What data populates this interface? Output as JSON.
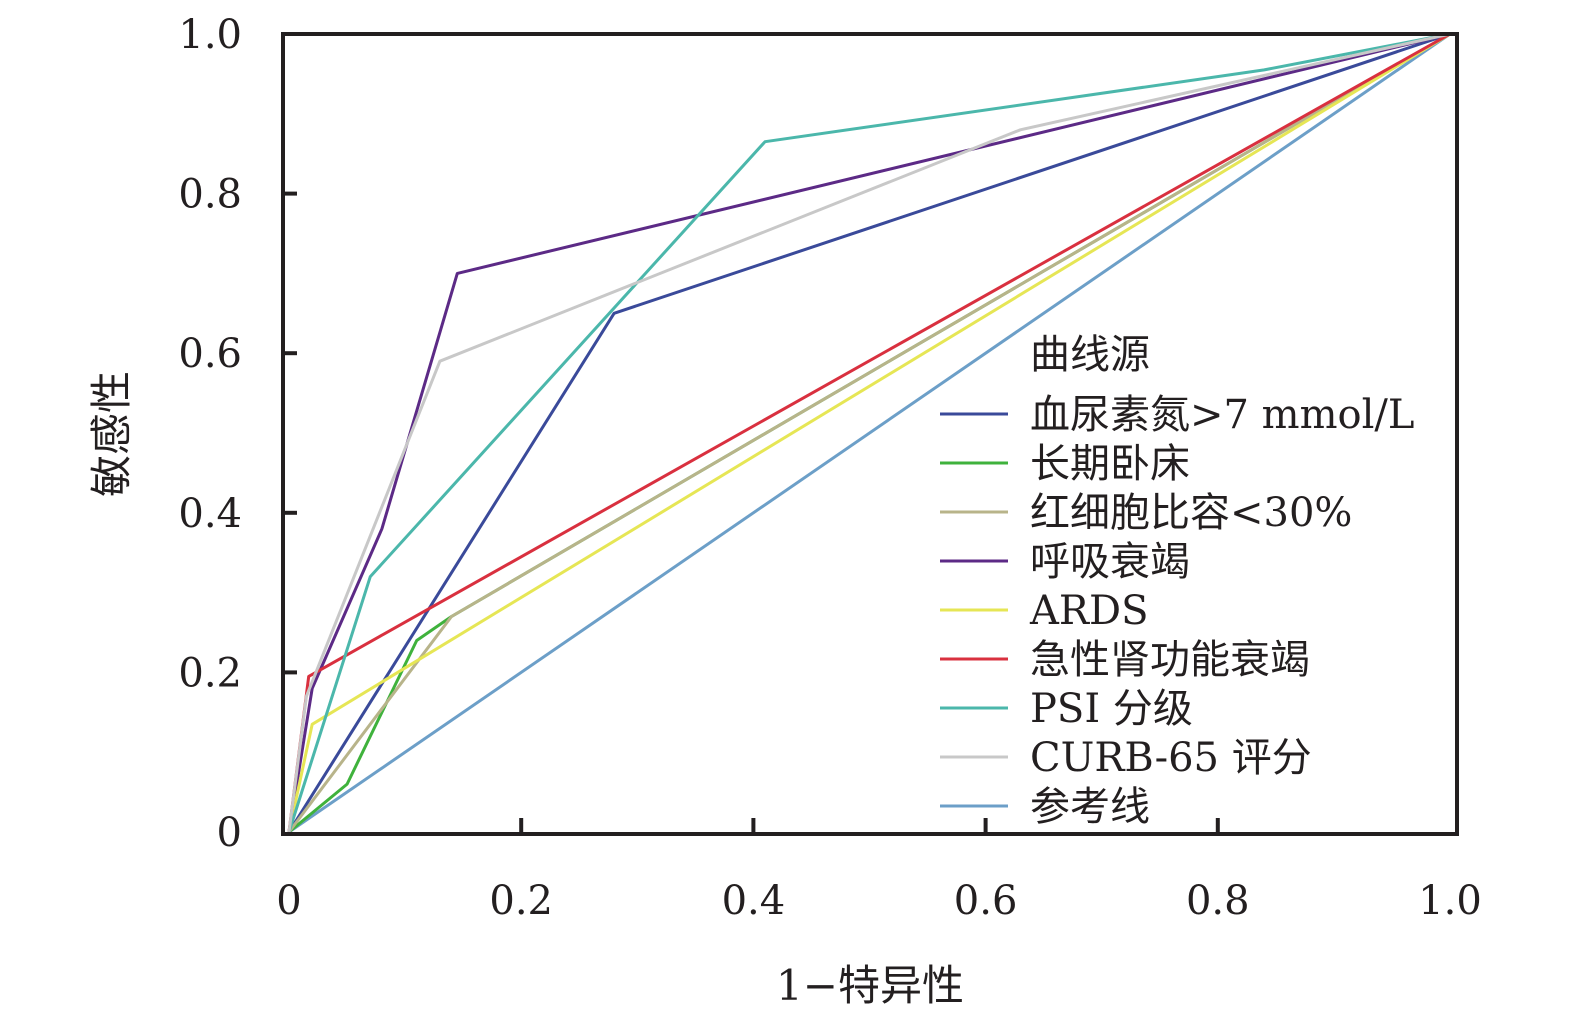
{
  "chart_data": {
    "type": "line",
    "xlabel": "1−特异性",
    "ylabel": "敏感性",
    "xlim": [
      0,
      1
    ],
    "ylim": [
      0,
      1
    ],
    "x_ticks": [
      0,
      0.2,
      0.4,
      0.6,
      0.8,
      1.0
    ],
    "y_ticks": [
      0,
      0.2,
      0.4,
      0.6,
      0.8,
      1.0
    ],
    "x_tick_labels": [
      "0",
      "0.2",
      "0.4",
      "0.6",
      "0.8",
      "1.0"
    ],
    "y_tick_labels": [
      "0",
      "0.2",
      "0.4",
      "0.6",
      "0.8",
      "1.0"
    ],
    "grid": false,
    "legend": {
      "title": "曲线源",
      "placement": "bottom-right"
    },
    "series": [
      {
        "name": "血尿素氮>7 mmol/L",
        "color": "#3a4a9a",
        "points": [
          [
            0,
            0
          ],
          [
            0.28,
            0.65
          ],
          [
            1,
            1
          ]
        ]
      },
      {
        "name": "长期卧床",
        "color": "#3fb23c",
        "points": [
          [
            0,
            0
          ],
          [
            0.05,
            0.06
          ],
          [
            0.11,
            0.24
          ],
          [
            0.14,
            0.27
          ],
          [
            1,
            1
          ]
        ]
      },
      {
        "name": "红细胞比容<30%",
        "color": "#b8b48a",
        "points": [
          [
            0,
            0
          ],
          [
            0.14,
            0.27
          ],
          [
            1,
            1
          ]
        ]
      },
      {
        "name": "呼吸衰竭",
        "color": "#5c2a86",
        "points": [
          [
            0,
            0
          ],
          [
            0.02,
            0.18
          ],
          [
            0.08,
            0.38
          ],
          [
            0.145,
            0.7
          ],
          [
            1,
            1
          ]
        ]
      },
      {
        "name": "ARDS",
        "color": "#e6e655",
        "points": [
          [
            0,
            0
          ],
          [
            0.02,
            0.135
          ],
          [
            1,
            1
          ]
        ]
      },
      {
        "name": "急性肾功能衰竭",
        "color": "#d9303f",
        "points": [
          [
            0,
            0
          ],
          [
            0.017,
            0.195
          ],
          [
            1,
            1
          ]
        ]
      },
      {
        "name": "PSI 分级",
        "color": "#4bb7ab",
        "points": [
          [
            0,
            0
          ],
          [
            0.07,
            0.32
          ],
          [
            0.41,
            0.865
          ],
          [
            0.84,
            0.955
          ],
          [
            1,
            1
          ]
        ]
      },
      {
        "name": "CURB-65 评分",
        "color": "#c8c8c8",
        "points": [
          [
            0,
            0
          ],
          [
            0.015,
            0.17
          ],
          [
            0.13,
            0.59
          ],
          [
            0.63,
            0.88
          ],
          [
            1,
            1
          ]
        ]
      },
      {
        "name": "参考线",
        "color": "#6c9fc8",
        "points": [
          [
            0,
            0
          ],
          [
            1,
            1
          ]
        ]
      }
    ]
  }
}
